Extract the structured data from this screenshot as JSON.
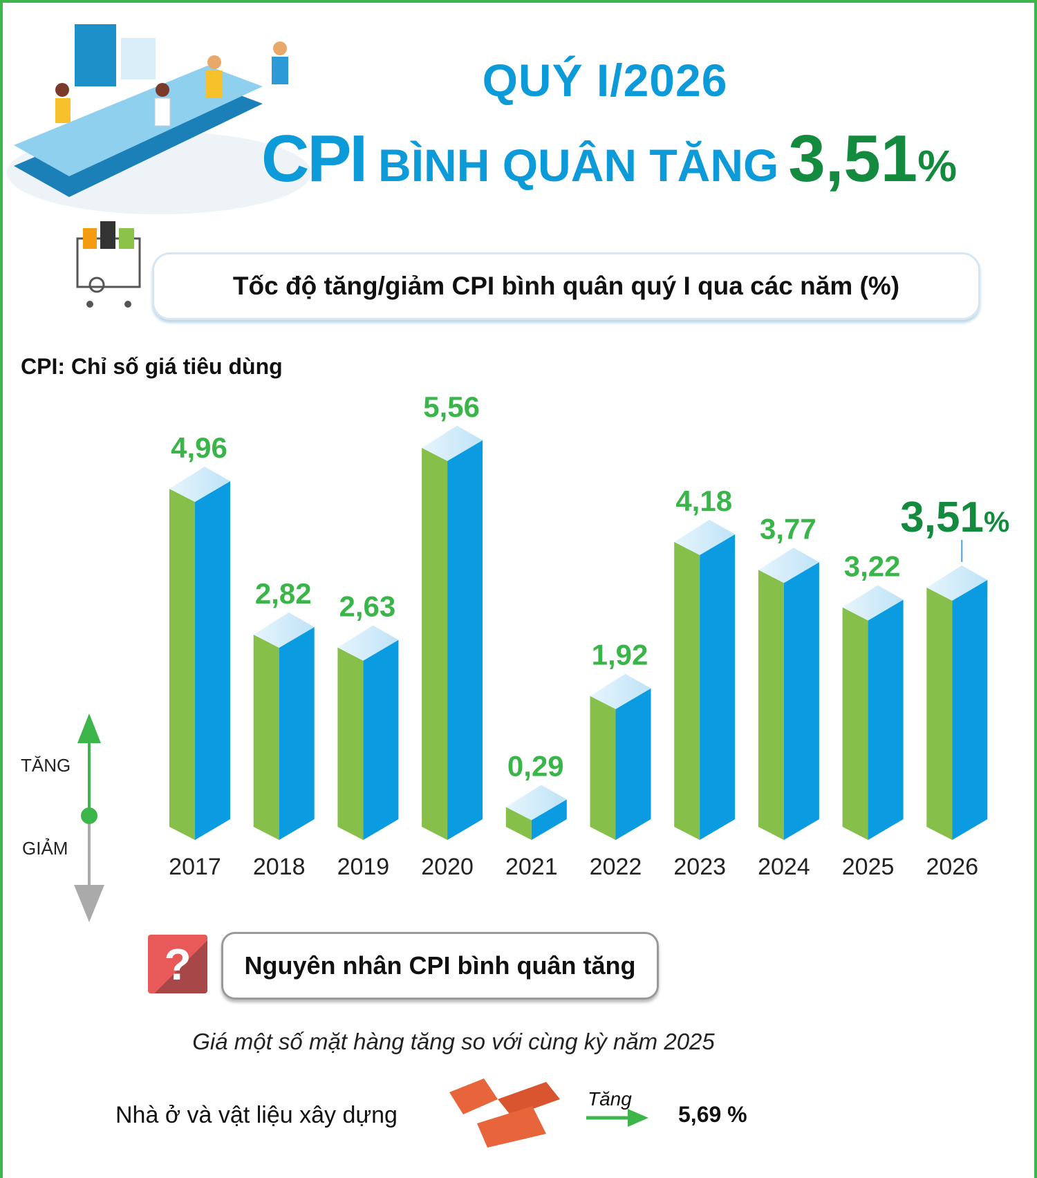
{
  "header": {
    "period": "QUÝ I/2026",
    "headline_cpi": "CPI",
    "headline_mid": "BÌNH QUÂN TĂNG",
    "headline_value": "3,51",
    "headline_pct": "%"
  },
  "subtitle": "Tốc độ tăng/giảm CPI bình quân quý I qua các năm (%)",
  "note": "CPI: Chỉ số giá tiêu dùng",
  "legend": {
    "up": "TĂNG",
    "down": "GIẢM"
  },
  "colors": {
    "frame": "#3cb54a",
    "title": "#0c9ad8",
    "highlight": "#138a3e",
    "bar_left": "#86c04a",
    "bar_right": "#0a9be0",
    "bar_top": "#bfe3f7",
    "label": "#3ab54a"
  },
  "chart_data": {
    "type": "bar",
    "categories": [
      "2017",
      "2018",
      "2019",
      "2020",
      "2021",
      "2022",
      "2023",
      "2024",
      "2025",
      "2026"
    ],
    "values": [
      4.96,
      2.82,
      2.63,
      5.56,
      0.29,
      1.92,
      4.18,
      3.77,
      3.22,
      3.51
    ],
    "labels": [
      "4,96",
      "2,82",
      "2,63",
      "5,56",
      "0,29",
      "1,92",
      "4,18",
      "3,77",
      "3,22",
      "3,51"
    ],
    "highlight_last_suffix": "%",
    "ylim": [
      0,
      6
    ]
  },
  "reasons": {
    "icon": "question-icon",
    "question_mark": "?",
    "title": "Nguyên nhân CPI bình quân tăng",
    "intro": "Giá một số mặt hàng tăng so với cùng kỳ năm 2025",
    "items": [
      {
        "name": "Nhà ở và vật liệu xây dựng",
        "icon": "bricks-icon",
        "direction": "Tăng",
        "value": "5,69 %"
      }
    ]
  }
}
